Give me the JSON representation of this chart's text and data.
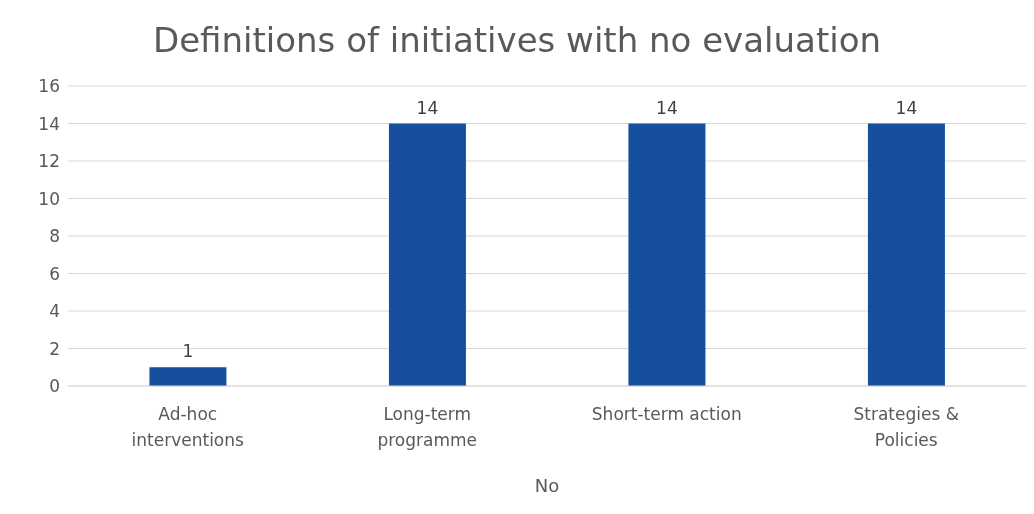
{
  "chart_data": {
    "type": "bar",
    "title": "Definitions of initiatives with no evaluation",
    "xlabel": "No",
    "categories": [
      "Ad-hoc interventions",
      "Long-term programme",
      "Short-term action",
      "Strategies & Policies"
    ],
    "values": [
      1,
      14,
      14,
      14
    ],
    "color": "#154f9e",
    "ylim": [
      0,
      16
    ],
    "yticks": [
      0,
      2,
      4,
      6,
      8,
      10,
      12,
      14,
      16
    ],
    "grid": "y",
    "data_labels": true
  }
}
